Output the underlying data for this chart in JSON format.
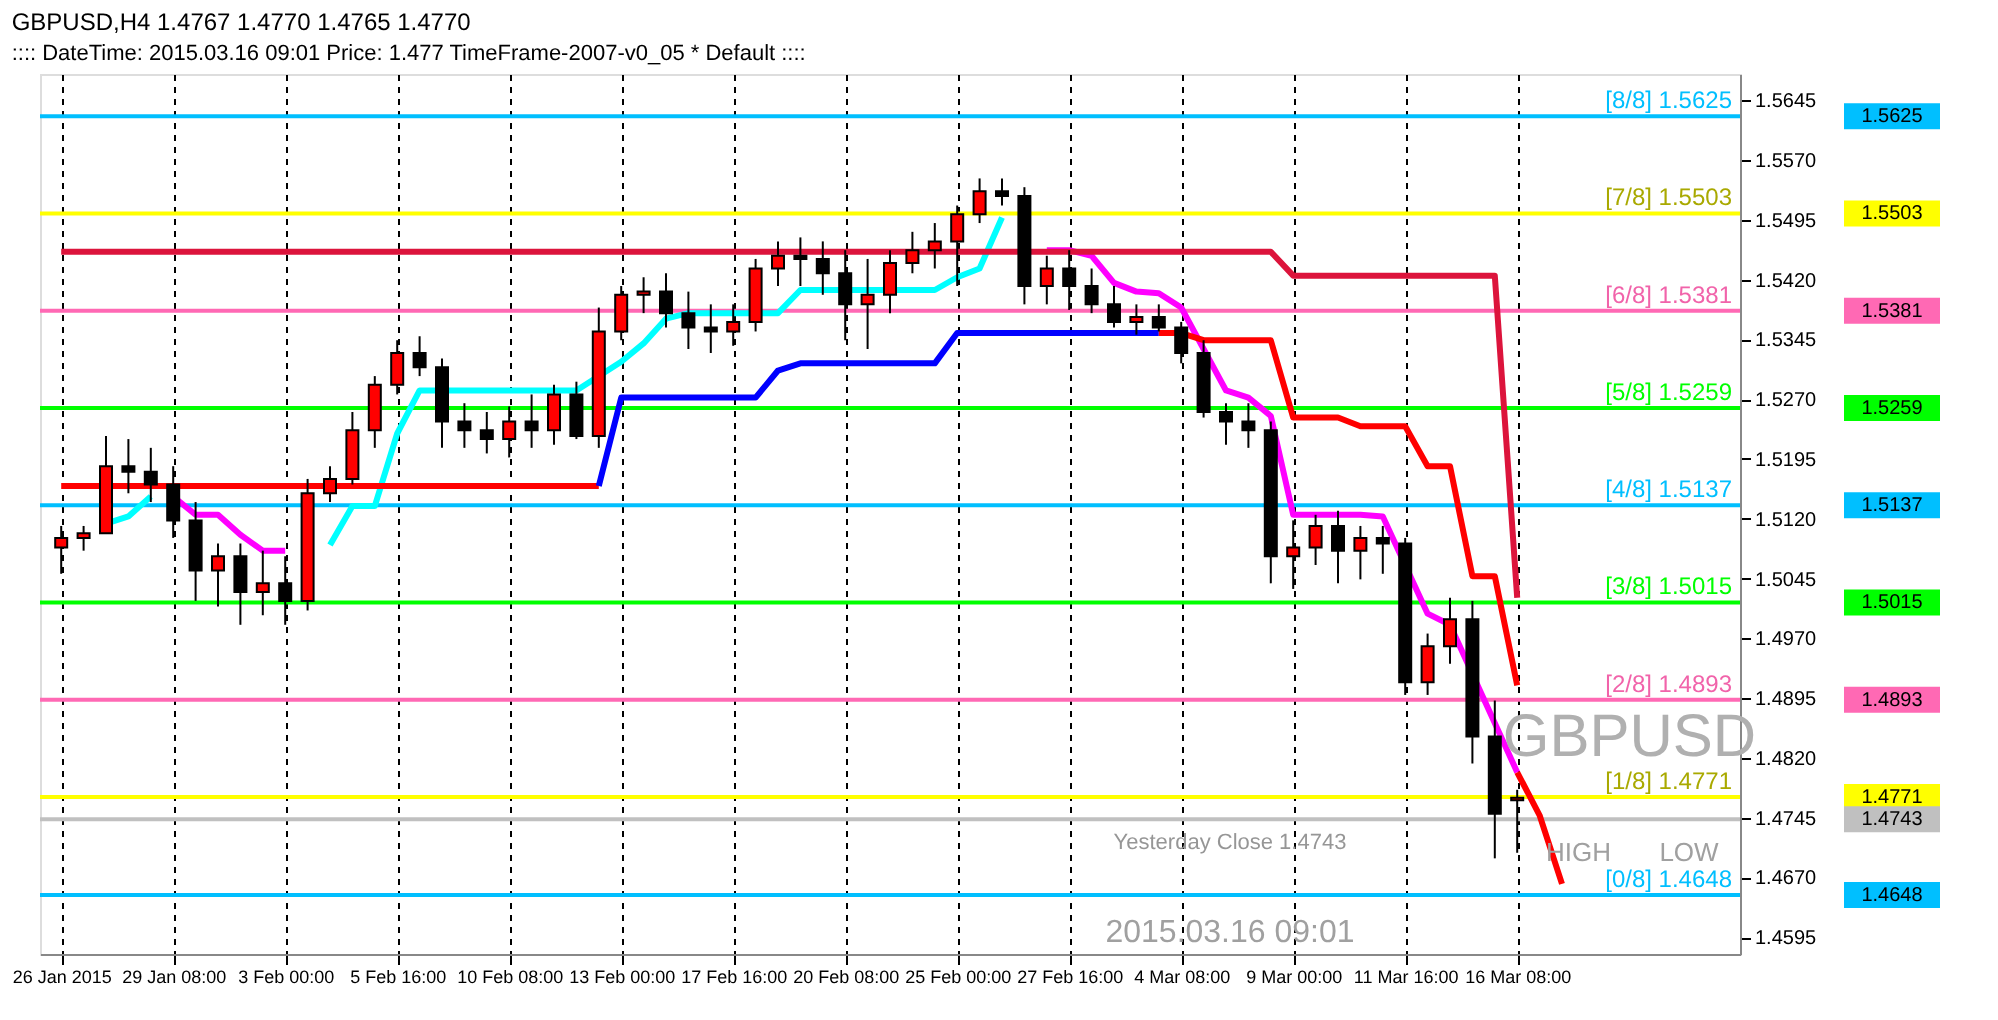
{
  "chart_data": {
    "type": "candlestick",
    "title": "GBPUSD,H4  1.4767 1.4770 1.4765 1.4770",
    "subtitle": ":::: DateTime: 2015.03.16 09:01    Price: 1.477    TimeFrame-2007-v0_05    *  Default ::::",
    "categories": [
      "26 Jan 2015",
      null,
      null,
      null,
      null,
      "29 Jan 08:00",
      null,
      null,
      null,
      null,
      "3 Feb 00:00",
      null,
      null,
      null,
      null,
      "5 Feb 16:00",
      null,
      null,
      null,
      null,
      "10 Feb 08:00",
      null,
      null,
      null,
      null,
      "13 Feb 00:00",
      null,
      null,
      null,
      null,
      "17 Feb 16:00",
      null,
      null,
      null,
      null,
      "20 Feb 08:00",
      null,
      null,
      null,
      null,
      "25 Feb 00:00",
      null,
      null,
      null,
      null,
      "27 Feb 16:00",
      null,
      null,
      null,
      null,
      "4 Mar 08:00",
      null,
      null,
      null,
      null,
      "9 Mar 00:00",
      null,
      null,
      null,
      null,
      "11 Mar 16:00",
      null,
      null,
      null,
      null,
      "16 Mar 08:00",
      null,
      null,
      null,
      null,
      null,
      null,
      null,
      null,
      null
    ],
    "ohlc": [
      [
        1.5084,
        1.5111,
        1.5051,
        1.5096
      ],
      [
        1.5096,
        1.5111,
        1.508,
        1.5102
      ],
      [
        1.5102,
        1.5224,
        1.5102,
        1.5186
      ],
      [
        1.5186,
        1.522,
        1.5152,
        1.5179
      ],
      [
        1.5179,
        1.5209,
        1.5141,
        1.5163
      ],
      [
        1.5163,
        1.5186,
        1.5096,
        1.5118
      ],
      [
        1.5118,
        1.5141,
        1.5017,
        1.5055
      ],
      [
        1.5055,
        1.5089,
        1.501,
        1.5073
      ],
      [
        1.5073,
        1.5089,
        1.4987,
        1.5028
      ],
      [
        1.5028,
        1.508,
        1.4999,
        1.5039
      ],
      [
        1.5039,
        1.5073,
        1.4987,
        1.5017
      ],
      [
        1.5017,
        1.517,
        1.5005,
        1.5152
      ],
      [
        1.5152,
        1.5186,
        1.5141,
        1.517
      ],
      [
        1.517,
        1.5254,
        1.5163,
        1.5231
      ],
      [
        1.5231,
        1.5299,
        1.5209,
        1.5288
      ],
      [
        1.5288,
        1.5344,
        1.5276,
        1.5328
      ],
      [
        1.5328,
        1.5349,
        1.5299,
        1.531
      ],
      [
        1.531,
        1.5321,
        1.5209,
        1.5242
      ],
      [
        1.5242,
        1.5265,
        1.5209,
        1.5231
      ],
      [
        1.5231,
        1.5254,
        1.5202,
        1.522
      ],
      [
        1.522,
        1.5261,
        1.5197,
        1.5242
      ],
      [
        1.5242,
        1.5276,
        1.5209,
        1.5231
      ],
      [
        1.5231,
        1.5288,
        1.5213,
        1.5276
      ],
      [
        1.5276,
        1.5292,
        1.522,
        1.5224
      ],
      [
        1.5224,
        1.5385,
        1.5209,
        1.5355
      ],
      [
        1.5355,
        1.5412,
        1.5344,
        1.5401
      ],
      [
        1.5401,
        1.5423,
        1.5378,
        1.5405
      ],
      [
        1.5405,
        1.5428,
        1.536,
        1.5378
      ],
      [
        1.5378,
        1.5405,
        1.5333,
        1.536
      ],
      [
        1.536,
        1.5389,
        1.5328,
        1.5355
      ],
      [
        1.5355,
        1.5389,
        1.5337,
        1.5367
      ],
      [
        1.5367,
        1.5446,
        1.5355,
        1.5434
      ],
      [
        1.5434,
        1.5468,
        1.5412,
        1.545
      ],
      [
        1.545,
        1.5473,
        1.5412,
        1.5446
      ],
      [
        1.5446,
        1.5468,
        1.5401,
        1.5428
      ],
      [
        1.5428,
        1.5457,
        1.5344,
        1.5389
      ],
      [
        1.5389,
        1.5446,
        1.5333,
        1.5401
      ],
      [
        1.5401,
        1.5457,
        1.5378,
        1.5441
      ],
      [
        1.5441,
        1.548,
        1.5428,
        1.5457
      ],
      [
        1.5457,
        1.5491,
        1.5434,
        1.5468
      ],
      [
        1.5468,
        1.5513,
        1.5412,
        1.5502
      ],
      [
        1.5502,
        1.5547,
        1.5491,
        1.5531
      ],
      [
        1.5531,
        1.5547,
        1.5513,
        1.5525
      ],
      [
        1.5525,
        1.5536,
        1.5389,
        1.5412
      ],
      [
        1.5412,
        1.545,
        1.5389,
        1.5434
      ],
      [
        1.5434,
        1.5457,
        1.5382,
        1.5412
      ],
      [
        1.5412,
        1.5434,
        1.5378,
        1.5389
      ],
      [
        1.5389,
        1.5412,
        1.536,
        1.5367
      ],
      [
        1.5367,
        1.5389,
        1.5351,
        1.5373
      ],
      [
        1.5373,
        1.5389,
        1.5355,
        1.536
      ],
      [
        1.536,
        1.5367,
        1.5315,
        1.5328
      ],
      [
        1.5328,
        1.5344,
        1.5247,
        1.5254
      ],
      [
        1.5254,
        1.5265,
        1.5213,
        1.5242
      ],
      [
        1.5242,
        1.5265,
        1.5209,
        1.5231
      ],
      [
        1.5231,
        1.5242,
        1.5039,
        1.5073
      ],
      [
        1.5073,
        1.5118,
        1.5032,
        1.5084
      ],
      [
        1.5084,
        1.5125,
        1.5062,
        1.5111
      ],
      [
        1.5111,
        1.513,
        1.5039,
        1.508
      ],
      [
        1.508,
        1.5111,
        1.5044,
        1.5096
      ],
      [
        1.5096,
        1.5111,
        1.5051,
        1.5089
      ],
      [
        1.5089,
        1.5096,
        1.4899,
        1.4915
      ],
      [
        1.4915,
        1.4976,
        1.4899,
        1.496
      ],
      [
        1.496,
        1.5021,
        1.4938,
        1.4994
      ],
      [
        1.4994,
        1.5017,
        1.4813,
        1.4847
      ],
      [
        1.4847,
        1.4892,
        1.4694,
        1.475
      ],
      [
        1.4767,
        1.478,
        1.4701,
        1.477
      ],
      null,
      null,
      null,
      null,
      null,
      null,
      null,
      null,
      null
    ],
    "series": [
      {
        "type": "line",
        "color": "#00ffff",
        "values": [
          null,
          null,
          1.5114,
          1.5123,
          1.5148,
          null,
          null,
          null,
          null,
          null,
          null,
          null,
          null,
          null,
          null,
          null,
          null,
          null,
          null,
          null,
          null,
          null,
          null,
          null,
          null,
          null,
          null,
          null,
          null,
          null,
          null,
          null,
          null,
          null,
          null,
          null,
          null,
          null,
          null,
          null,
          null,
          null,
          null,
          null,
          null,
          null,
          null,
          null,
          null,
          null,
          null,
          null,
          null,
          null,
          null,
          null,
          null,
          null,
          null,
          null,
          null,
          null,
          null,
          null,
          null,
          null,
          null,
          null,
          null,
          null,
          null,
          null,
          null,
          null,
          null
        ]
      },
      {
        "type": "line",
        "color": "#ff00ff",
        "values": [
          null,
          null,
          null,
          null,
          null,
          1.5148,
          1.5125,
          1.5125,
          1.51,
          1.508,
          1.508,
          null,
          null,
          null,
          null,
          null,
          null,
          null,
          null,
          null,
          null,
          null,
          null,
          null,
          null,
          null,
          null,
          null,
          null,
          null,
          null,
          null,
          null,
          null,
          null,
          null,
          null,
          null,
          null,
          null,
          null,
          null,
          null,
          null,
          null,
          null,
          null,
          null,
          null,
          null,
          null,
          null,
          null,
          null,
          null,
          null,
          null,
          null,
          null,
          null,
          null,
          null,
          null,
          null,
          null,
          null,
          null,
          null,
          null,
          null,
          null,
          null,
          null,
          null,
          null
        ]
      },
      {
        "type": "line",
        "color": "#00ffff",
        "values": [
          null,
          null,
          null,
          null,
          null,
          null,
          null,
          null,
          null,
          null,
          null,
          null,
          1.5087,
          1.5136,
          1.5136,
          1.5227,
          1.5281,
          1.5281,
          1.5281,
          1.5281,
          1.5281,
          1.5281,
          1.5281,
          1.5281,
          null,
          1.5317,
          1.534,
          1.5371,
          1.5378,
          1.5378,
          1.5378,
          null,
          1.5378,
          1.5407,
          1.5407,
          1.5407,
          1.5407,
          1.5407,
          1.5407,
          1.5407,
          1.5423,
          1.5434,
          1.5498,
          null,
          null,
          null,
          null,
          null,
          null,
          null,
          null,
          null,
          null,
          null,
          null,
          null,
          null,
          null,
          null,
          null,
          null,
          null,
          null,
          null,
          null,
          null,
          null,
          null,
          null,
          null,
          null,
          null,
          null,
          null,
          null
        ]
      },
      {
        "type": "line",
        "color": "#ff00ff",
        "values": [
          null,
          null,
          null,
          null,
          null,
          null,
          null,
          null,
          null,
          null,
          null,
          null,
          null,
          null,
          null,
          null,
          null,
          null,
          null,
          null,
          null,
          null,
          null,
          null,
          null,
          null,
          null,
          null,
          null,
          null,
          null,
          null,
          null,
          null,
          null,
          null,
          null,
          null,
          null,
          null,
          null,
          null,
          null,
          null,
          1.5457,
          1.5457,
          1.545,
          1.5416,
          1.5405,
          1.5403,
          1.5385,
          null,
          1.5281,
          1.5272,
          1.5249,
          1.5125,
          1.5125,
          1.5125,
          1.5125,
          1.5123,
          null,
          1.5001,
          1.4987,
          null,
          null,
          1.4802,
          null,
          null,
          null,
          null,
          null,
          null,
          null,
          null,
          null
        ]
      },
      {
        "type": "line",
        "color": "#ff0000",
        "values": [
          1.5161,
          1.5161,
          1.5161,
          1.5161,
          1.5161,
          1.5161,
          1.5161,
          1.5161,
          1.5161,
          1.5161,
          1.5161,
          1.5161,
          1.5161,
          1.5161,
          1.5161,
          1.5161,
          1.5161,
          1.5161,
          1.5161,
          1.5161,
          1.5161,
          1.5161,
          1.5161,
          1.5161,
          1.5161,
          null,
          null,
          null,
          null,
          null,
          null,
          null,
          null,
          null,
          null,
          null,
          null,
          null,
          null,
          null,
          null,
          null,
          null,
          null,
          null,
          null,
          null,
          null,
          null,
          null,
          null,
          null,
          null,
          null,
          null,
          null,
          null,
          null,
          null,
          null,
          null,
          null,
          null,
          null,
          null,
          null,
          null,
          null,
          null,
          null,
          null,
          null,
          null,
          null,
          null
        ]
      },
      {
        "type": "line",
        "color": "#0000ff",
        "values": [
          null,
          null,
          null,
          null,
          null,
          null,
          null,
          null,
          null,
          null,
          null,
          null,
          null,
          null,
          null,
          null,
          null,
          null,
          null,
          null,
          null,
          null,
          null,
          null,
          1.5161,
          1.5272,
          1.5272,
          1.5272,
          1.5272,
          1.5272,
          1.5272,
          1.5272,
          1.5306,
          1.5315,
          1.5315,
          1.5315,
          1.5315,
          1.5315,
          1.5315,
          1.5315,
          1.5353,
          1.5353,
          1.5353,
          1.5353,
          1.5353,
          1.5353,
          1.5353,
          1.5353,
          1.5353,
          1.5353,
          null,
          null,
          null,
          null,
          null,
          null,
          null,
          null,
          null,
          null,
          null,
          null,
          null,
          null,
          null,
          null,
          null,
          null,
          null,
          null,
          null,
          null,
          null,
          null,
          null
        ]
      },
      {
        "type": "line",
        "color": "#ff0000",
        "values": [
          null,
          null,
          null,
          null,
          null,
          null,
          null,
          null,
          null,
          null,
          null,
          null,
          null,
          null,
          null,
          null,
          null,
          null,
          null,
          null,
          null,
          null,
          null,
          null,
          null,
          null,
          null,
          null,
          null,
          null,
          null,
          null,
          null,
          null,
          null,
          null,
          null,
          null,
          null,
          null,
          null,
          null,
          null,
          null,
          null,
          null,
          null,
          null,
          null,
          1.5353,
          1.5353,
          1.5344,
          1.5344,
          1.5344,
          1.5344,
          1.5247,
          1.5247,
          1.5247,
          1.5236,
          1.5236,
          1.5236,
          1.5186,
          1.5186,
          1.5048,
          1.5048,
          1.4911,
          null,
          null,
          null,
          null,
          null,
          null,
          null,
          null,
          null
        ]
      },
      {
        "type": "line",
        "color": "#dc143c",
        "values": [
          1.5455,
          1.5455,
          1.5455,
          1.5455,
          1.5455,
          1.5455,
          1.5455,
          1.5455,
          1.5455,
          1.5455,
          1.5455,
          1.5455,
          1.5455,
          1.5455,
          1.5455,
          1.5455,
          1.5455,
          1.5455,
          1.5455,
          1.5455,
          1.5455,
          1.5455,
          1.5455,
          1.5455,
          1.5455,
          1.5455,
          1.5455,
          1.5455,
          1.5455,
          1.5455,
          1.5455,
          1.5455,
          1.5455,
          1.5455,
          1.5455,
          1.5455,
          1.5455,
          1.5455,
          1.5455,
          1.5455,
          1.5455,
          1.5455,
          1.5455,
          null,
          1.5455,
          1.5455,
          1.5455,
          1.5455,
          1.5455,
          1.5455,
          1.5455,
          1.5455,
          1.5455,
          1.5455,
          1.5455,
          1.5425,
          1.5425,
          1.5425,
          1.5425,
          1.5425,
          1.5425,
          1.5425,
          1.5425,
          1.5425,
          1.5425,
          1.5021,
          null,
          null,
          null,
          null,
          null,
          null,
          null,
          null,
          null
        ]
      },
      {
        "type": "line",
        "color": "#ff0000",
        "values": [
          null,
          null,
          null,
          null,
          null,
          null,
          null,
          null,
          null,
          null,
          null,
          null,
          null,
          null,
          null,
          null,
          null,
          null,
          null,
          null,
          null,
          null,
          null,
          null,
          null,
          null,
          null,
          null,
          null,
          null,
          null,
          null,
          null,
          null,
          null,
          null,
          null,
          null,
          null,
          null,
          null,
          null,
          null,
          null,
          null,
          null,
          null,
          null,
          null,
          null,
          null,
          null,
          null,
          null,
          null,
          null,
          null,
          null,
          null,
          null,
          null,
          null,
          null,
          null,
          null,
          1.4802,
          1.4748,
          1.4662,
          null,
          null,
          null,
          null,
          null,
          null,
          null
        ]
      }
    ],
    "ref_lines": [
      {
        "axis": "y",
        "value": 1.5625,
        "label": "[8/8] 1.5625",
        "color": "#00bfff"
      },
      {
        "axis": "y",
        "value": 1.5503,
        "label": "[7/8] 1.5503",
        "color": "#ffff00"
      },
      {
        "axis": "y",
        "value": 1.5381,
        "label": "[6/8] 1.5381",
        "color": "#ff69b4"
      },
      {
        "axis": "y",
        "value": 1.5259,
        "label": "[5/8] 1.5259",
        "color": "#00ff00"
      },
      {
        "axis": "y",
        "value": 1.5137,
        "label": "[4/8] 1.5137",
        "color": "#00bfff"
      },
      {
        "axis": "y",
        "value": 1.5015,
        "label": "[3/8] 1.5015",
        "color": "#00ff00"
      },
      {
        "axis": "y",
        "value": 1.4893,
        "label": "[2/8] 1.4893",
        "color": "#ff69b4"
      },
      {
        "axis": "y",
        "value": 1.4771,
        "label": "[1/8] 1.4771",
        "color": "#ffff00"
      },
      {
        "axis": "y",
        "value": 1.4743,
        "label": "Yesterday Close 1.4743",
        "color": "#c0c0c0"
      },
      {
        "axis": "y",
        "value": 1.4648,
        "label": "[0/8] 1.4648",
        "color": "#00bfff"
      }
    ],
    "annotations": [
      "GBPUSD",
      "HIGH",
      "LOW",
      "2015.03.16 09:01",
      "1.5625",
      "1.5503",
      "1.5381",
      "1.5259",
      "1.5137",
      "1.5015",
      "1.4893",
      "1.4771",
      "1.4743",
      "1.4648"
    ],
    "ylim": [
      1.4574,
      1.5678
    ],
    "yticks": [
      1.5645,
      {
        "value": 1.557,
        "label": "1.5570"
      },
      1.5495,
      {
        "value": 1.542,
        "label": "1.5420"
      },
      1.5345,
      {
        "value": 1.527,
        "label": "1.5270"
      },
      1.5195,
      {
        "value": 1.512,
        "label": "1.5120"
      },
      1.5045,
      {
        "value": 1.497,
        "label": "1.4970"
      },
      1.4895,
      {
        "value": 1.482,
        "label": "1.4820"
      },
      1.4745,
      {
        "value": 1.467,
        "label": "1.4670"
      },
      1.4595
    ],
    "grid": "x"
  }
}
